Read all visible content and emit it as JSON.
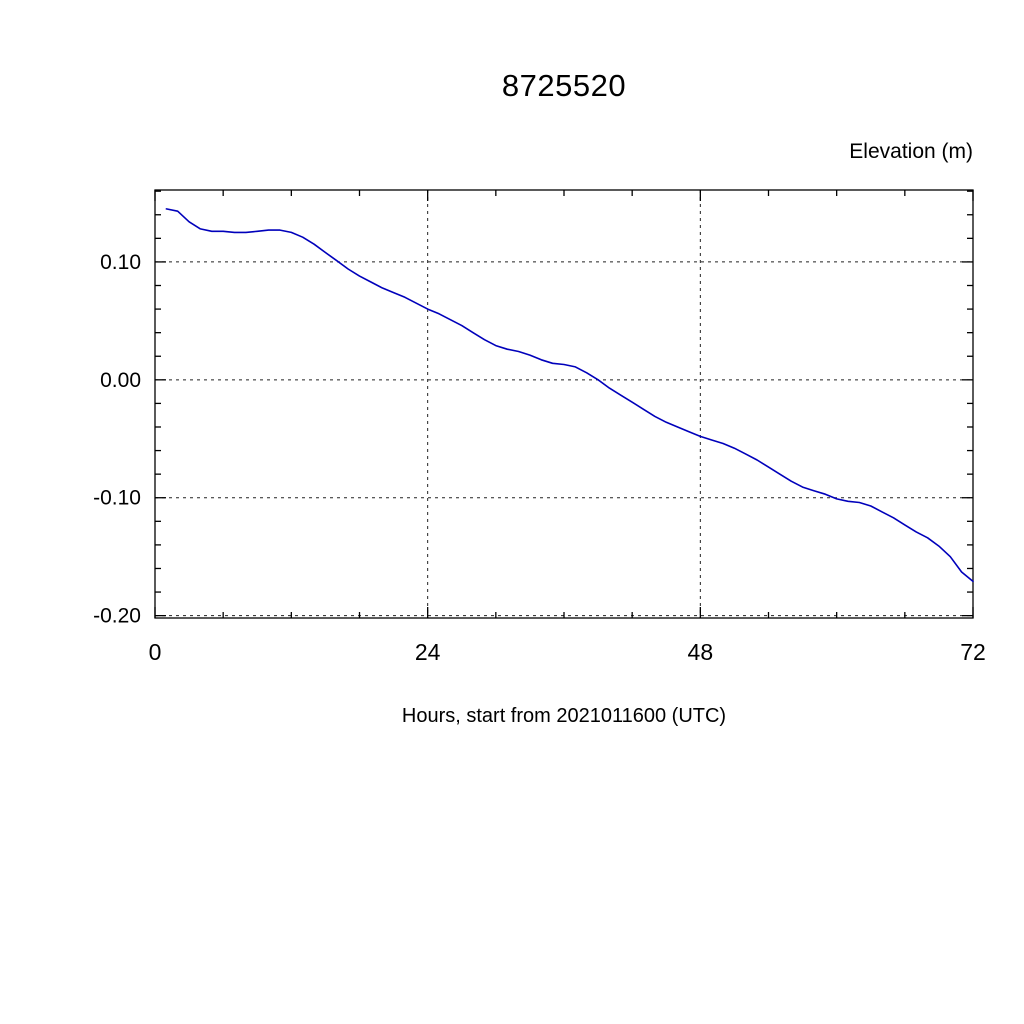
{
  "chart_data": {
    "type": "line",
    "title": "8725520",
    "right_label": "Elevation (m)",
    "xlabel": "Hours, start from 2021011600 (UTC)",
    "line_color": "#0000bb",
    "xlim": [
      0,
      72
    ],
    "ylim": [
      -0.202,
      0.161
    ],
    "xticks": [
      {
        "v": 0,
        "label": "0"
      },
      {
        "v": 24,
        "label": "24"
      },
      {
        "v": 48,
        "label": "48"
      },
      {
        "v": 72,
        "label": "72"
      }
    ],
    "yticks": [
      {
        "v": 0.1,
        "label": "0.10"
      },
      {
        "v": 0.0,
        "label": "0.00"
      },
      {
        "v": -0.1,
        "label": "-0.10"
      },
      {
        "v": -0.2,
        "label": "-0.20"
      }
    ],
    "xgrid": [
      24,
      48
    ],
    "ygrid": [
      0.1,
      0.0,
      -0.1,
      -0.2
    ],
    "x_minor_step": 6,
    "y_minor_step": 0.02,
    "x": [
      1,
      2,
      3,
      4,
      5,
      6,
      7,
      8,
      9,
      10,
      11,
      12,
      13,
      14,
      15,
      16,
      17,
      18,
      19,
      20,
      21,
      22,
      23,
      24,
      25,
      26,
      27,
      28,
      29,
      30,
      31,
      32,
      33,
      34,
      35,
      36,
      37,
      38,
      39,
      40,
      41,
      42,
      43,
      44,
      45,
      46,
      47,
      48,
      49,
      50,
      51,
      52,
      53,
      54,
      55,
      56,
      57,
      58,
      59,
      60,
      61,
      62,
      63,
      64,
      65,
      66,
      67,
      68,
      69,
      70,
      71,
      72
    ],
    "values": [
      0.145,
      0.143,
      0.134,
      0.128,
      0.126,
      0.126,
      0.125,
      0.125,
      0.126,
      0.127,
      0.127,
      0.125,
      0.121,
      0.115,
      0.108,
      0.101,
      0.094,
      0.088,
      0.083,
      0.078,
      0.074,
      0.07,
      0.065,
      0.06,
      0.056,
      0.051,
      0.046,
      0.04,
      0.034,
      0.029,
      0.026,
      0.024,
      0.021,
      0.017,
      0.014,
      0.013,
      0.011,
      0.006,
      0.0,
      -0.007,
      -0.013,
      -0.019,
      -0.025,
      -0.031,
      -0.036,
      -0.04,
      -0.044,
      -0.048,
      -0.051,
      -0.054,
      -0.058,
      -0.063,
      -0.068,
      -0.074,
      -0.08,
      -0.086,
      -0.091,
      -0.094,
      -0.097,
      -0.101,
      -0.103,
      -0.104,
      -0.107,
      -0.112,
      -0.117,
      -0.123,
      -0.129,
      -0.134,
      -0.141,
      -0.15,
      -0.163,
      -0.171
    ]
  }
}
